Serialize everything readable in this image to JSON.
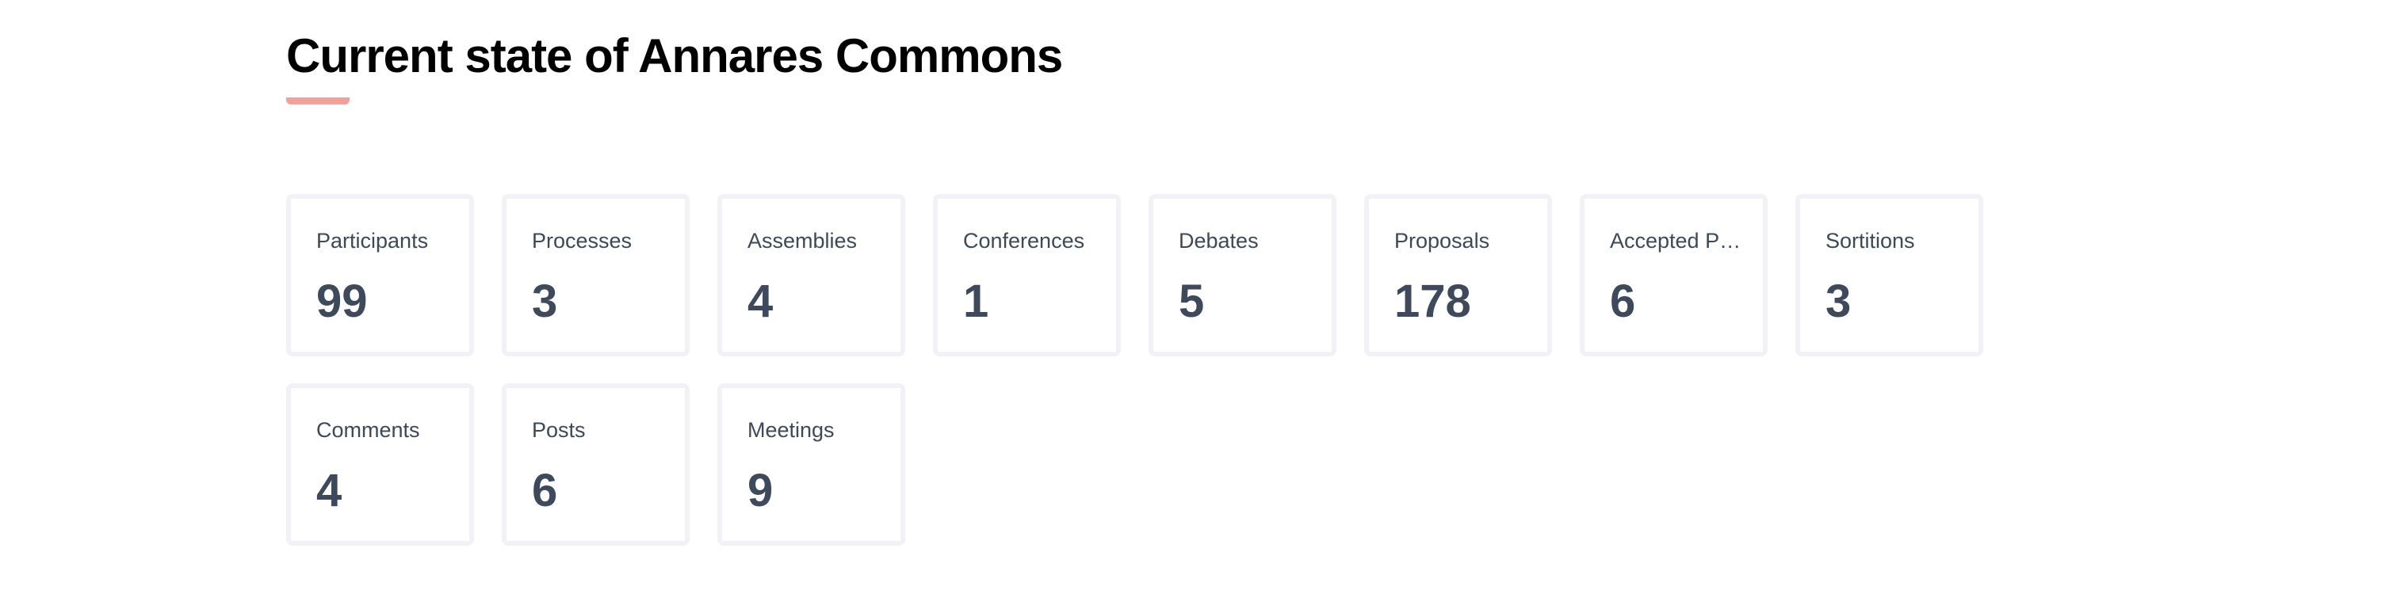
{
  "page": {
    "title": "Current state of Annares Commons",
    "accent_color": "#f2a09c"
  },
  "stats": [
    {
      "label": "Participants",
      "value": "99"
    },
    {
      "label": "Processes",
      "value": "3"
    },
    {
      "label": "Assemblies",
      "value": "4"
    },
    {
      "label": "Conferences",
      "value": "1"
    },
    {
      "label": "Debates",
      "value": "5"
    },
    {
      "label": "Proposals",
      "value": "178"
    },
    {
      "label": "Accepted P…",
      "value": "6"
    },
    {
      "label": "Sortitions",
      "value": "3"
    },
    {
      "label": "Comments",
      "value": "4"
    },
    {
      "label": "Posts",
      "value": "6"
    },
    {
      "label": "Meetings",
      "value": "9"
    }
  ]
}
